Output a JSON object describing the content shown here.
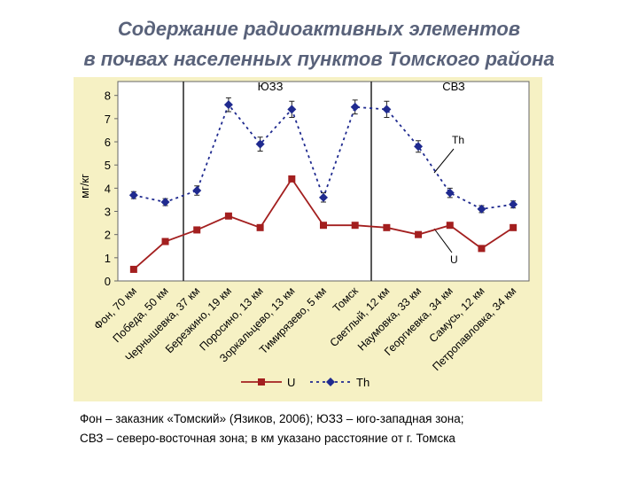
{
  "chart_data": {
    "type": "line",
    "title_lines": [
      "Содержание радиоактивных элементов",
      "в почвах населенных пунктов Томского района"
    ],
    "categories": [
      "Фон, 70 км",
      "Победа, 50 км",
      "Чернышевка, 37 км",
      "Березкино, 19 км",
      "Поросино, 13 км",
      "Зоркальцево, 13 км",
      "Тимирязево, 5 км",
      "Томск",
      "Светлый, 12 км",
      "Наумовка, 33 км",
      "Георгиевка, 34 км",
      "Самусь, 12 км",
      "Петропавловка, 34 км"
    ],
    "series": [
      {
        "name": "U",
        "color": "#a31f1f",
        "marker": "square",
        "dash": false,
        "values": [
          0.5,
          1.7,
          2.2,
          2.8,
          2.3,
          4.4,
          2.4,
          2.4,
          2.3,
          2.0,
          2.4,
          1.4,
          2.3
        ]
      },
      {
        "name": "Th",
        "color": "#1f2a8f",
        "marker": "diamond",
        "dash": true,
        "values": [
          3.7,
          3.4,
          3.9,
          7.6,
          5.9,
          7.4,
          3.6,
          7.5,
          7.4,
          5.8,
          3.8,
          3.1,
          3.3
        ],
        "errors": [
          0.15,
          0.15,
          0.2,
          0.3,
          0.3,
          0.35,
          0.2,
          0.3,
          0.35,
          0.25,
          0.2,
          0.15,
          0.15
        ]
      }
    ],
    "ylabel": "мг/кг",
    "ylim": [
      0,
      8.6
    ],
    "yticks": [
      0,
      1,
      2,
      3,
      4,
      5,
      6,
      7,
      8
    ],
    "zones": [
      {
        "label": "ЮЗЗ"
      },
      {
        "label": "СВЗ"
      }
    ],
    "annotations": [
      "Th",
      "U"
    ],
    "caption_lines": [
      "Фон – заказник «Томский» (Язиков, 2006); ЮЗЗ – юго-западная зона;",
      "СВЗ – северо-восточная зона; в км указано расстояние от г. Томска"
    ]
  }
}
